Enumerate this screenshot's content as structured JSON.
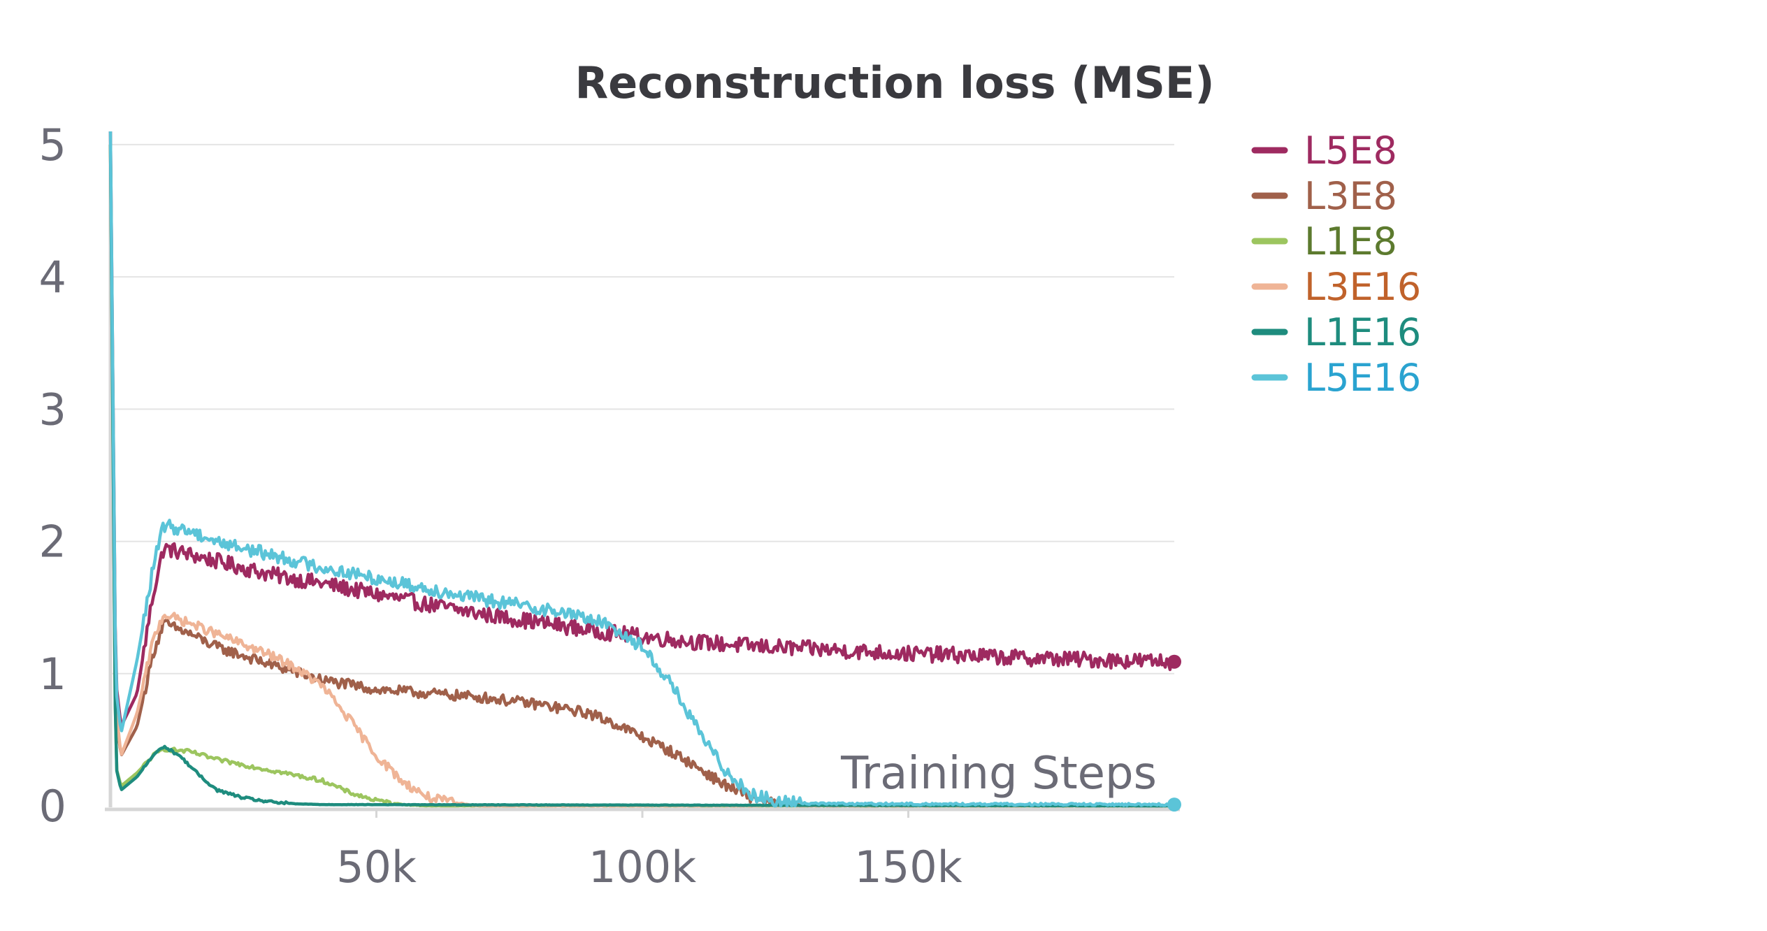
{
  "chart_data": {
    "type": "line",
    "title": "Reconstruction loss (MSE)",
    "xlabel": "Training Steps",
    "ylabel": "",
    "xlim": [
      0,
      200000
    ],
    "ylim": [
      0,
      5.1
    ],
    "x_ticks": [
      {
        "value": 50000,
        "label": "50k"
      },
      {
        "value": 100000,
        "label": "100k"
      },
      {
        "value": 150000,
        "label": "150k"
      }
    ],
    "y_ticks": [
      {
        "value": 0,
        "label": "0"
      },
      {
        "value": 1,
        "label": "1"
      },
      {
        "value": 2,
        "label": "2"
      },
      {
        "value": 3,
        "label": "3"
      },
      {
        "value": 4,
        "label": "4"
      },
      {
        "value": 5,
        "label": "5"
      }
    ],
    "grid": "horizontal",
    "legend_position": "right",
    "series": [
      {
        "name": "L5E8",
        "color": "#9e2a60",
        "label_color": "#9e2a60",
        "noise": 0.06,
        "end_marker": true,
        "points": [
          [
            0,
            5.1
          ],
          [
            1000,
            0.95
          ],
          [
            2000,
            0.6
          ],
          [
            5000,
            0.85
          ],
          [
            8000,
            1.6
          ],
          [
            10000,
            1.95
          ],
          [
            15000,
            1.9
          ],
          [
            20000,
            1.85
          ],
          [
            30000,
            1.75
          ],
          [
            40000,
            1.68
          ],
          [
            50000,
            1.6
          ],
          [
            60000,
            1.52
          ],
          [
            70000,
            1.45
          ],
          [
            80000,
            1.39
          ],
          [
            90000,
            1.33
          ],
          [
            100000,
            1.28
          ],
          [
            110000,
            1.24
          ],
          [
            120000,
            1.21
          ],
          [
            130000,
            1.19
          ],
          [
            140000,
            1.17
          ],
          [
            150000,
            1.15
          ],
          [
            160000,
            1.14
          ],
          [
            170000,
            1.12
          ],
          [
            180000,
            1.11
          ],
          [
            190000,
            1.1
          ],
          [
            200000,
            1.09
          ]
        ]
      },
      {
        "name": "L3E8",
        "color": "#a0604a",
        "label_color": "#a0604a",
        "noise": 0.04,
        "end_marker": false,
        "points": [
          [
            0,
            5.0
          ],
          [
            1000,
            0.7
          ],
          [
            2000,
            0.38
          ],
          [
            5000,
            0.6
          ],
          [
            8000,
            1.15
          ],
          [
            10000,
            1.38
          ],
          [
            15000,
            1.3
          ],
          [
            20000,
            1.2
          ],
          [
            30000,
            1.07
          ],
          [
            40000,
            0.95
          ],
          [
            50000,
            0.88
          ],
          [
            60000,
            0.85
          ],
          [
            70000,
            0.82
          ],
          [
            80000,
            0.77
          ],
          [
            90000,
            0.7
          ],
          [
            95000,
            0.62
          ],
          [
            100000,
            0.52
          ],
          [
            105000,
            0.42
          ],
          [
            110000,
            0.3
          ],
          [
            115000,
            0.17
          ],
          [
            120000,
            0.07
          ],
          [
            125000,
            0.02
          ],
          [
            130000,
            0.005
          ],
          [
            140000,
            0.0
          ],
          [
            200000,
            0.0
          ]
        ]
      },
      {
        "name": "L1E8",
        "color": "#9cc55f",
        "label_color": "#5c7a2e",
        "noise": 0.015,
        "end_marker": false,
        "points": [
          [
            0,
            5.0
          ],
          [
            1000,
            0.3
          ],
          [
            2000,
            0.15
          ],
          [
            5000,
            0.25
          ],
          [
            8000,
            0.38
          ],
          [
            10000,
            0.43
          ],
          [
            15000,
            0.41
          ],
          [
            20000,
            0.35
          ],
          [
            30000,
            0.27
          ],
          [
            40000,
            0.19
          ],
          [
            45000,
            0.1
          ],
          [
            50000,
            0.04
          ],
          [
            55000,
            0.01
          ],
          [
            60000,
            0.0
          ],
          [
            200000,
            0.0
          ]
        ]
      },
      {
        "name": "L3E16",
        "color": "#efb496",
        "label_color": "#c0622b",
        "noise": 0.035,
        "end_marker": false,
        "points": [
          [
            0,
            5.0
          ],
          [
            1000,
            0.75
          ],
          [
            2000,
            0.38
          ],
          [
            5000,
            0.7
          ],
          [
            8000,
            1.25
          ],
          [
            10000,
            1.45
          ],
          [
            15000,
            1.38
          ],
          [
            20000,
            1.3
          ],
          [
            25000,
            1.22
          ],
          [
            30000,
            1.14
          ],
          [
            35000,
            1.04
          ],
          [
            40000,
            0.9
          ],
          [
            45000,
            0.65
          ],
          [
            50000,
            0.38
          ],
          [
            55000,
            0.18
          ],
          [
            60000,
            0.06
          ],
          [
            65000,
            0.02
          ],
          [
            70000,
            0.0
          ],
          [
            200000,
            0.0
          ]
        ]
      },
      {
        "name": "L1E16",
        "color": "#1e8c7e",
        "label_color": "#1e8c7e",
        "noise": 0.01,
        "end_marker": false,
        "points": [
          [
            0,
            5.0
          ],
          [
            1000,
            0.3
          ],
          [
            2000,
            0.12
          ],
          [
            5000,
            0.22
          ],
          [
            8000,
            0.38
          ],
          [
            10000,
            0.45
          ],
          [
            13000,
            0.38
          ],
          [
            17000,
            0.22
          ],
          [
            20000,
            0.12
          ],
          [
            25000,
            0.06
          ],
          [
            30000,
            0.03
          ],
          [
            35000,
            0.015
          ],
          [
            40000,
            0.01
          ],
          [
            200000,
            0.0
          ]
        ]
      },
      {
        "name": "L5E16",
        "color": "#5bc4d8",
        "label_color": "#2aa3d0",
        "noise": 0.05,
        "end_marker": true,
        "points": [
          [
            0,
            5.1
          ],
          [
            1000,
            0.9
          ],
          [
            2000,
            0.55
          ],
          [
            5000,
            1.1
          ],
          [
            8000,
            1.8
          ],
          [
            10000,
            2.12
          ],
          [
            15000,
            2.08
          ],
          [
            20000,
            2.0
          ],
          [
            30000,
            1.9
          ],
          [
            40000,
            1.8
          ],
          [
            50000,
            1.72
          ],
          [
            60000,
            1.64
          ],
          [
            70000,
            1.56
          ],
          [
            80000,
            1.5
          ],
          [
            90000,
            1.42
          ],
          [
            95000,
            1.34
          ],
          [
            100000,
            1.2
          ],
          [
            105000,
            0.95
          ],
          [
            110000,
            0.6
          ],
          [
            115000,
            0.3
          ],
          [
            120000,
            0.1
          ],
          [
            125000,
            0.03
          ],
          [
            130000,
            0.02
          ],
          [
            140000,
            0.015
          ],
          [
            200000,
            0.01
          ]
        ]
      }
    ]
  }
}
